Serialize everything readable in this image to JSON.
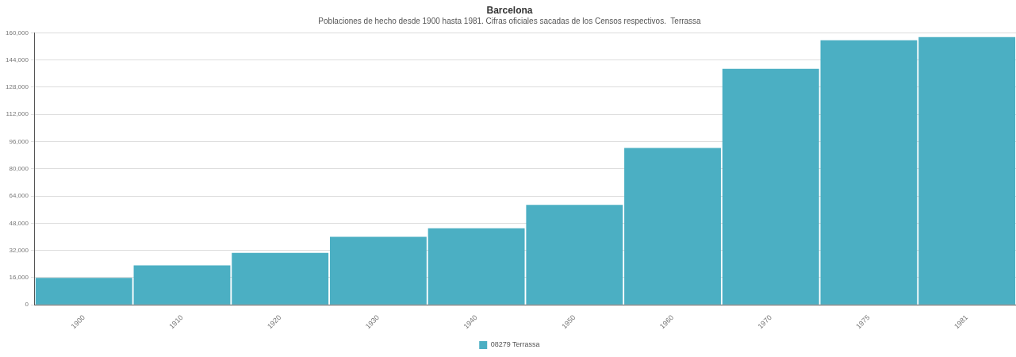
{
  "chart_data": {
    "type": "bar",
    "title": "Barcelona",
    "subtitle": "Poblaciones de hecho desde 1900 hasta 1981. Cifras oficiales sacadas de los Censos respectivos.  Terrassa",
    "categories": [
      "1900",
      "1910",
      "1920",
      "1930",
      "1940",
      "1950",
      "1960",
      "1970",
      "1975",
      "1981"
    ],
    "series": [
      {
        "name": "08279 Terrassa",
        "color": "#4bafc3",
        "values": [
          15800,
          23200,
          30600,
          40000,
          45000,
          58800,
          92300,
          138800,
          155600,
          157500
        ]
      }
    ],
    "ylim": [
      0,
      160000
    ],
    "yticks": [
      0,
      {
        "value": 16000,
        "label": "16,000"
      },
      {
        "value": 32000,
        "label": "32,000"
      },
      {
        "value": 48000,
        "label": "48,000"
      },
      {
        "value": 64000,
        "label": "64,000"
      },
      {
        "value": 80000,
        "label": "80,000"
      },
      {
        "value": 96000,
        "label": "96,000"
      },
      {
        "value": 112000,
        "label": "112,000"
      },
      {
        "value": 128000,
        "label": "128,000"
      },
      {
        "value": 144000,
        "label": "144,000"
      },
      {
        "value": 160000,
        "label": "160,000"
      }
    ],
    "grid": "y",
    "legend": "bottom"
  }
}
